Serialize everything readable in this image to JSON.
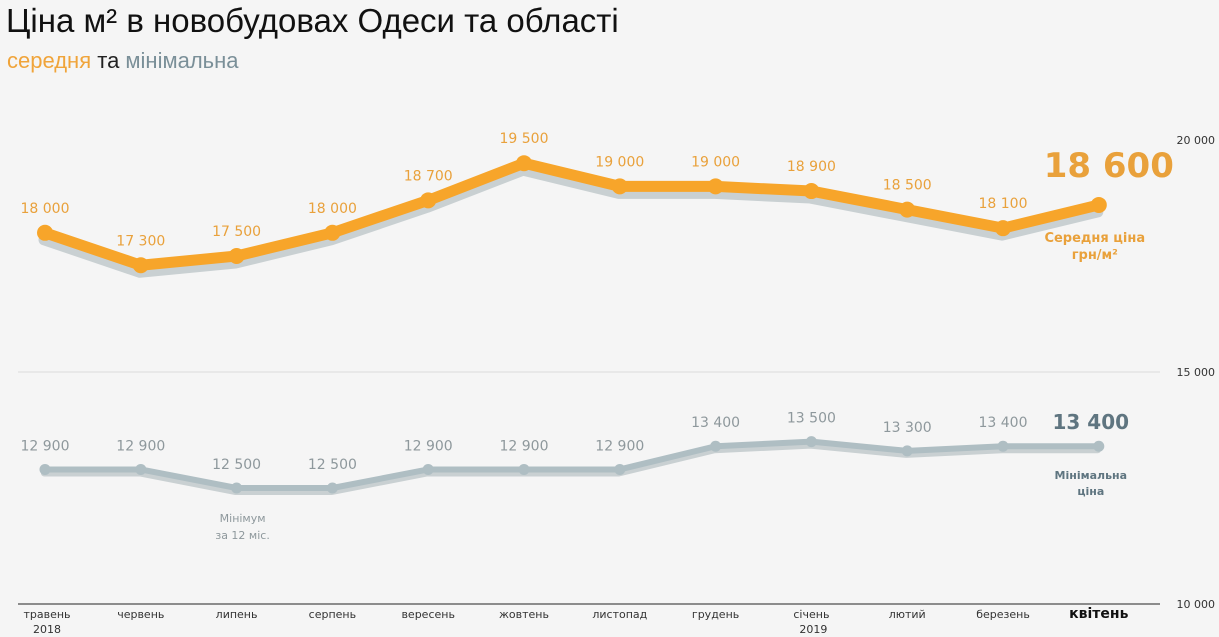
{
  "title": "Ціна м² в новобудовах Одеси та області",
  "subtitle": {
    "part1": "середня",
    "part2": " та ",
    "part3": "мінімальна"
  },
  "chart_data": {
    "type": "line",
    "title": "Ціна м² в новобудовах Одеси та області",
    "categories": [
      "травень",
      "червень",
      "липень",
      "серпень",
      "вересень",
      "жовтень",
      "листопад",
      "грудень",
      "січень",
      "лютий",
      "березень",
      "квітень"
    ],
    "category_sublabels": [
      "2018",
      "",
      "",
      "",
      "",
      "",
      "",
      "",
      "2019",
      "",
      "",
      ""
    ],
    "highlighted_category": "квітень",
    "series": [
      {
        "name": "Середня ціна грн/м²",
        "label_line1": "Середня ціна",
        "label_line2": "грн/м²",
        "color": "#f7a52a",
        "label_color": "#e9a13b",
        "values": [
          18000,
          17300,
          17500,
          18000,
          18700,
          19500,
          19000,
          19000,
          18900,
          18500,
          18100,
          18600
        ]
      },
      {
        "name": "Мінімальна ціна",
        "label_line1": "Мінімальна",
        "label_line2": "ціна",
        "color": "#afbec3",
        "label_color": "#8e989c",
        "highlight_color": "#5f7580",
        "values": [
          12900,
          12900,
          12500,
          12500,
          12900,
          12900,
          12900,
          13400,
          13500,
          13300,
          13400,
          13400
        ]
      }
    ],
    "annotation": {
      "category": "липень",
      "series": "Мінімальна ціна",
      "line1": "Мінімум",
      "line2": "за 12 міс."
    },
    "yticks": [
      10000,
      15000,
      20000
    ],
    "ytick_labels": [
      "10 000",
      "15 000",
      "20 000"
    ],
    "ylim": [
      10000,
      20000
    ],
    "y_axis_position": "right",
    "grid": true,
    "shadow_color": "#c9d0d2"
  }
}
